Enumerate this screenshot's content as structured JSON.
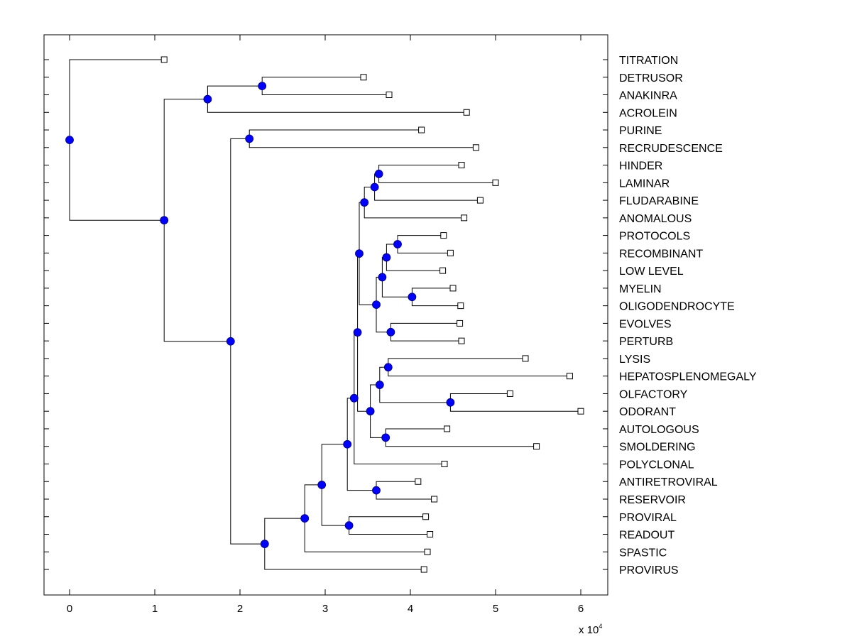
{
  "chart_data": {
    "type": "dendrogram",
    "title": "",
    "xlabel": "",
    "ylabel": "",
    "xlim": [
      -0.3,
      6.3
    ],
    "x_ticks": [
      0,
      1,
      2,
      3,
      4,
      5,
      6
    ],
    "x_tick_labels": [
      "0",
      "1",
      "2",
      "3",
      "4",
      "5",
      "6"
    ],
    "x_multiplier_label": "x 10",
    "x_multiplier_exponent": "4",
    "grid": false,
    "node_color": "#0000ff",
    "leaf_marker": "square",
    "leaves": [
      {
        "name": "TITRATION",
        "x": 1.11
      },
      {
        "name": "DETRUSOR",
        "x": 3.45
      },
      {
        "name": "ANAKINRA",
        "x": 3.75
      },
      {
        "name": "ACROLEIN",
        "x": 4.66
      },
      {
        "name": "PURINE",
        "x": 4.13
      },
      {
        "name": "RECRUDESCENCE",
        "x": 4.77
      },
      {
        "name": "HINDER",
        "x": 4.6
      },
      {
        "name": "LAMINAR",
        "x": 5.0
      },
      {
        "name": "FLUDARABINE",
        "x": 4.82
      },
      {
        "name": "ANOMALOUS",
        "x": 4.63
      },
      {
        "name": "PROTOCOLS",
        "x": 4.39
      },
      {
        "name": "RECOMBINANT",
        "x": 4.47
      },
      {
        "name": "LOW LEVEL",
        "x": 4.38
      },
      {
        "name": "MYELIN",
        "x": 4.5
      },
      {
        "name": "OLIGODENDROCYTE",
        "x": 4.59
      },
      {
        "name": "EVOLVES",
        "x": 4.58
      },
      {
        "name": "PERTURB",
        "x": 4.6
      },
      {
        "name": "LYSIS",
        "x": 5.35
      },
      {
        "name": "HEPATOSPLENOMEGALY",
        "x": 5.87
      },
      {
        "name": "OLFACTORY",
        "x": 5.17
      },
      {
        "name": "ODORANT",
        "x": 6.0
      },
      {
        "name": "AUTOLOGOUS",
        "x": 4.43
      },
      {
        "name": "SMOLDERING",
        "x": 5.48
      },
      {
        "name": "POLYCLONAL",
        "x": 4.4
      },
      {
        "name": "ANTIRETROVIRAL",
        "x": 4.09
      },
      {
        "name": "RESERVOIR",
        "x": 4.28
      },
      {
        "name": "PROVIRAL",
        "x": 4.18
      },
      {
        "name": "READOUT",
        "x": 4.23
      },
      {
        "name": "SPASTIC",
        "x": 4.2
      },
      {
        "name": "PROVIRUS",
        "x": 4.16
      }
    ],
    "tree": {
      "x": 0,
      "children": [
        {
          "leaf": 0
        },
        {
          "x": 1.11,
          "children": [
            {
              "x": 1.62,
              "children": [
                {
                  "x": 2.26,
                  "children": [
                    {
                      "leaf": 1
                    },
                    {
                      "leaf": 2
                    }
                  ]
                },
                {
                  "leaf": 3
                }
              ]
            },
            {
              "x": 1.89,
              "children": [
                {
                  "x": 2.11,
                  "children": [
                    {
                      "leaf": 4
                    },
                    {
                      "leaf": 5
                    }
                  ]
                },
                {
                  "x": 2.29,
                  "children": [
                    {
                      "x": 2.76,
                      "children": [
                        {
                          "x": 2.96,
                          "children": [
                            {
                              "x": 3.26,
                              "children": [
                                {
                                  "x": 3.34,
                                  "children": [
                                    {
                                      "x": 3.38,
                                      "children": [
                                        {
                                          "x": 3.4,
                                          "children": [
                                            {
                                              "x": 3.46,
                                              "children": [
                                                {
                                                  "x": 3.58,
                                                  "children": [
                                                    {
                                                      "x": 3.63,
                                                      "children": [
                                                        {
                                                          "leaf": 6
                                                        },
                                                        {
                                                          "leaf": 7
                                                        }
                                                      ]
                                                    },
                                                    {
                                                      "leaf": 8
                                                    }
                                                  ]
                                                },
                                                {
                                                  "leaf": 9
                                                }
                                              ]
                                            },
                                            {
                                              "x": 3.6,
                                              "children": [
                                                {
                                                  "x": 3.67,
                                                  "children": [
                                                    {
                                                      "x": 3.72,
                                                      "children": [
                                                        {
                                                          "x": 3.85,
                                                          "children": [
                                                            {
                                                              "leaf": 10
                                                            },
                                                            {
                                                              "leaf": 11
                                                            }
                                                          ]
                                                        },
                                                        {
                                                          "leaf": 12
                                                        }
                                                      ]
                                                    },
                                                    {
                                                      "x": 4.02,
                                                      "children": [
                                                        {
                                                          "leaf": 13
                                                        },
                                                        {
                                                          "leaf": 14
                                                        }
                                                      ]
                                                    }
                                                  ]
                                                },
                                                {
                                                  "x": 3.77,
                                                  "children": [
                                                    {
                                                      "leaf": 15
                                                    },
                                                    {
                                                      "leaf": 16
                                                    }
                                                  ]
                                                }
                                              ]
                                            }
                                          ]
                                        },
                                        {
                                          "x": 3.53,
                                          "children": [
                                            {
                                              "x": 3.64,
                                              "children": [
                                                {
                                                  "x": 3.74,
                                                  "children": [
                                                    {
                                                      "leaf": 17
                                                    },
                                                    {
                                                      "leaf": 18
                                                    }
                                                  ]
                                                },
                                                {
                                                  "x": 4.47,
                                                  "children": [
                                                    {
                                                      "leaf": 19
                                                    },
                                                    {
                                                      "leaf": 20
                                                    }
                                                  ]
                                                }
                                              ]
                                            },
                                            {
                                              "x": 3.71,
                                              "children": [
                                                {
                                                  "leaf": 21
                                                },
                                                {
                                                  "leaf": 22
                                                }
                                              ]
                                            }
                                          ]
                                        }
                                      ]
                                    },
                                    {
                                      "leaf": 23
                                    }
                                  ]
                                },
                                {
                                  "x": 3.6,
                                  "children": [
                                    {
                                      "leaf": 24
                                    },
                                    {
                                      "leaf": 25
                                    }
                                  ]
                                }
                              ]
                            },
                            {
                              "x": 3.28,
                              "children": [
                                {
                                  "leaf": 26
                                },
                                {
                                  "leaf": 27
                                }
                              ]
                            }
                          ]
                        },
                        {
                          "leaf": 28
                        }
                      ]
                    },
                    {
                      "leaf": 29
                    }
                  ]
                }
              ]
            }
          ]
        }
      ]
    }
  }
}
